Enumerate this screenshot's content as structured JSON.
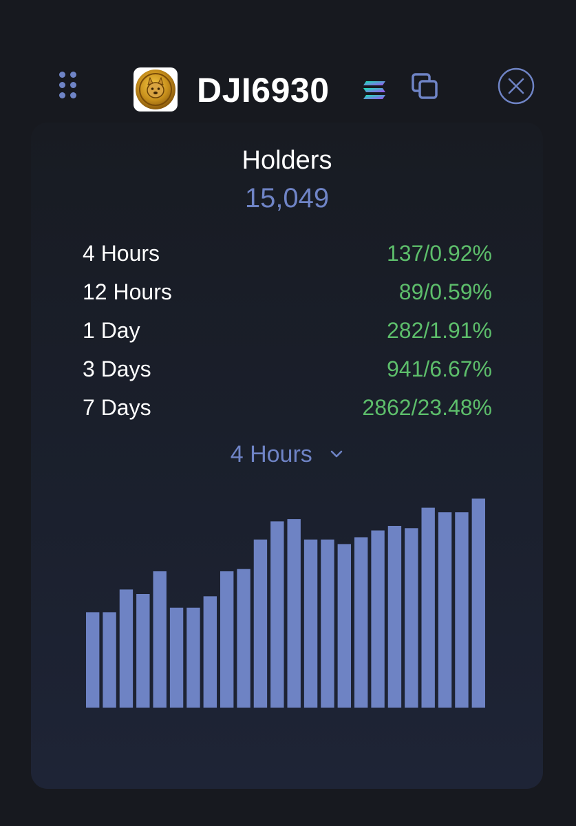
{
  "header": {
    "token_name": "DJI6930",
    "icons": {
      "drag": "drag-handle-icon",
      "chain": "solana-icon",
      "copy": "copy-icon",
      "close": "close-icon"
    }
  },
  "holders": {
    "title": "Holders",
    "count": "15,049",
    "stats": [
      {
        "label": "4 Hours",
        "count": "137",
        "percent": "0.92%"
      },
      {
        "label": "12 Hours",
        "count": "89",
        "percent": "0.59%"
      },
      {
        "label": "1 Day",
        "count": "282",
        "percent": "1.91%"
      },
      {
        "label": "3 Days",
        "count": "941",
        "percent": "6.67%"
      },
      {
        "label": "7 Days",
        "count": "2862",
        "percent": "23.48%"
      }
    ]
  },
  "period_selector": {
    "selected": "4 Hours"
  },
  "colors": {
    "background": "#17191f",
    "accent": "#6f84c6",
    "positive": "#5dbe6b",
    "bar": "#6e83c4",
    "text": "#ffffff"
  },
  "chart_data": {
    "type": "bar",
    "values": [
      42,
      42,
      52,
      50,
      60,
      44,
      44,
      49,
      60,
      61,
      74,
      82,
      83,
      74,
      74,
      72,
      75,
      78,
      80,
      79,
      88,
      86,
      86,
      92
    ],
    "ylim": [
      0,
      100
    ],
    "grid": false
  }
}
